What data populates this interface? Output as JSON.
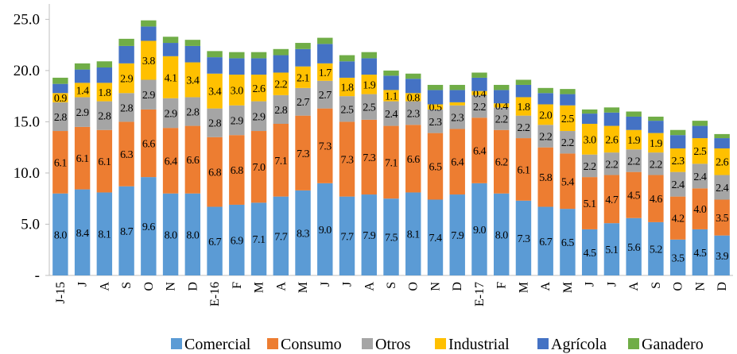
{
  "chart_data": {
    "type": "stacked-bar",
    "categories": [
      "J-15",
      "J",
      "A",
      "S",
      "O",
      "N",
      "D",
      "E-16",
      "F",
      "M",
      "A",
      "M",
      "J",
      "J",
      "A",
      "S",
      "O",
      "N",
      "D",
      "E-17",
      "F",
      "M",
      "A",
      "M",
      "J",
      "J",
      "A",
      "S",
      "O",
      "N",
      "D"
    ],
    "ylim": [
      0,
      26.5
    ],
    "yticks": [
      {
        "value": 0,
        "label": "-"
      },
      {
        "value": 5,
        "label": "5.0"
      },
      {
        "value": 10,
        "label": "10.0"
      },
      {
        "value": 15,
        "label": "15.0"
      },
      {
        "value": 20,
        "label": "20.0"
      },
      {
        "value": 25,
        "label": "25.0"
      }
    ],
    "series": [
      {
        "name": "Comercial",
        "color": "#5b9bd5",
        "values": [
          8.0,
          8.4,
          8.1,
          8.7,
          9.6,
          8.0,
          8.0,
          6.7,
          6.9,
          7.1,
          7.7,
          8.3,
          9.0,
          7.7,
          7.9,
          7.5,
          8.1,
          7.4,
          7.9,
          9.0,
          8.0,
          7.3,
          6.7,
          6.5,
          4.5,
          5.1,
          5.6,
          5.2,
          3.5,
          4.5,
          3.9
        ],
        "value_labels": [
          "8.0",
          "8.4",
          "8.1",
          "8.7",
          "9.6",
          "8.0",
          "8.0",
          "6.7",
          "6.9",
          "7.1",
          "7.7",
          "8.3",
          "9.0",
          "7.7",
          "7.9",
          "7.5",
          "8.1",
          "7.4",
          "7.9",
          "9.0",
          "8.0",
          "7.3",
          "6.7",
          "6.5",
          "4.5",
          "5.1",
          "5.6",
          "5.2",
          "3.5",
          "4.5",
          "3.9"
        ]
      },
      {
        "name": "Consumo",
        "color": "#ed7d31",
        "values": [
          6.1,
          6.1,
          6.1,
          6.3,
          6.6,
          6.4,
          6.6,
          6.8,
          6.8,
          7.0,
          7.1,
          7.3,
          7.3,
          7.3,
          7.3,
          7.1,
          6.6,
          6.5,
          6.4,
          6.4,
          6.2,
          6.1,
          5.8,
          5.4,
          5.1,
          4.7,
          4.5,
          4.6,
          4.2,
          4.0,
          3.5
        ],
        "value_labels": [
          "6.1",
          "6.1",
          "6.1",
          "6.3",
          "6.6",
          "6.4",
          "6.6",
          "6.8",
          "6.8",
          "7.0",
          "7.1",
          "7.3",
          "7.3",
          "7.3",
          "7.3",
          "7.1",
          "6.6",
          "6.5",
          "6.4",
          "6.4",
          "6.2",
          "6.1",
          "5.8",
          "5.4",
          "5.1",
          "4.7",
          "4.5",
          "4.6",
          "4.2",
          "4.0",
          "3.5"
        ]
      },
      {
        "name": "Otros",
        "color": "#a5a5a5",
        "values": [
          2.8,
          2.9,
          2.8,
          2.8,
          2.9,
          2.9,
          2.8,
          2.8,
          2.9,
          2.9,
          2.8,
          2.7,
          2.7,
          2.5,
          2.5,
          2.4,
          2.3,
          2.3,
          2.3,
          2.2,
          2.2,
          2.2,
          2.2,
          2.2,
          2.2,
          2.2,
          2.2,
          2.2,
          2.4,
          2.4,
          2.4
        ],
        "value_labels": [
          "2.8",
          "2.9",
          "2.8",
          "2.8",
          "2.9",
          "2.9",
          "2.8",
          "2.8",
          "2.9",
          "2.9",
          "2.8",
          "2.7",
          "2.7",
          "2.5",
          "2.5",
          "2.4",
          "2.3",
          "2.3",
          "2.3",
          "2.2",
          "2.2",
          "2.2",
          "2.2",
          "2.2",
          "2.2",
          "2.2",
          "2.2",
          "2.2",
          "2.4",
          "2.4",
          "2.4"
        ]
      },
      {
        "name": "Industrial",
        "color": "#ffc000",
        "values": [
          0.9,
          1.4,
          1.8,
          2.9,
          3.8,
          4.1,
          3.4,
          3.4,
          3.0,
          2.6,
          2.2,
          2.1,
          1.7,
          1.8,
          1.9,
          1.1,
          0.8,
          0.5,
          0.3,
          0.4,
          0.4,
          1.8,
          2.0,
          2.5,
          3.0,
          2.6,
          1.9,
          1.9,
          2.3,
          2.5,
          2.6
        ],
        "value_labels": [
          "0.9",
          "1.4",
          "1.8",
          "2.9",
          "3.8",
          "4.1",
          "3.4",
          "3.4",
          "3.0",
          "2.6",
          "2.2",
          "2.1",
          "1.7",
          "1.8",
          "1.9",
          "1.1",
          "0.8",
          "0.5",
          null,
          "0.4",
          "0.4",
          "1.8",
          "2.0",
          "2.5",
          "3.0",
          "2.6",
          "1.9",
          "1.9",
          "2.3",
          "2.5",
          "2.6"
        ]
      },
      {
        "name": "Agrícola",
        "color": "#4472c4",
        "values": [
          0.9,
          1.3,
          1.5,
          1.7,
          1.4,
          1.3,
          1.6,
          1.6,
          1.6,
          1.6,
          1.7,
          1.7,
          1.9,
          1.6,
          1.6,
          1.4,
          1.4,
          1.4,
          1.2,
          1.3,
          1.3,
          1.2,
          1.1,
          1.1,
          1.0,
          1.3,
          1.3,
          1.2,
          1.3,
          1.2,
          1.0
        ]
      },
      {
        "name": "Ganadero",
        "color": "#70ad47",
        "values": [
          0.6,
          0.6,
          0.6,
          0.7,
          0.6,
          0.6,
          0.6,
          0.6,
          0.6,
          0.6,
          0.6,
          0.6,
          0.6,
          0.6,
          0.6,
          0.5,
          0.5,
          0.5,
          0.5,
          0.5,
          0.5,
          0.5,
          0.5,
          0.5,
          0.4,
          0.5,
          0.5,
          0.4,
          0.5,
          0.5,
          0.4
        ]
      }
    ]
  }
}
